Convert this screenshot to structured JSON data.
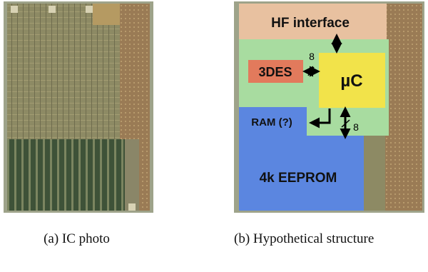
{
  "panel_a": {
    "caption": "(a) IC photo"
  },
  "panel_b": {
    "caption": "(b) Hypothetical structure",
    "blocks": {
      "hf": "HF interface",
      "des": "3DES",
      "uc": "µC",
      "ram": "RAM (?)",
      "eeprom": "4k EEPROM"
    },
    "bus_labels": [
      "8",
      "8"
    ]
  }
}
